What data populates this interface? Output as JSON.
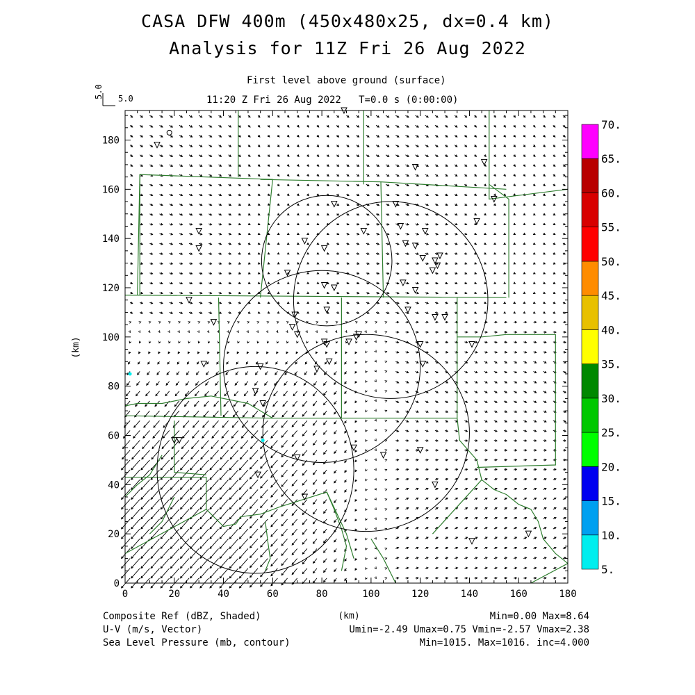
{
  "title": {
    "line1": "CASA DFW 400m (450x480x25, dx=0.4 km)",
    "line2": "Analysis for 11Z Fri 26 Aug 2022"
  },
  "subtitle": {
    "level": "First level above ground (surface)",
    "time": "11:20 Z Fri 26 Aug 2022   T=0.0 s (0:00:00)"
  },
  "vector_ref": {
    "vertical_label": "5.0",
    "horizontal_label": "5.0"
  },
  "footer": {
    "left1": "Composite Ref (dBZ, Shaded)",
    "left2": "U-V (m/s, Vector)",
    "left3": "Sea Level Pressure (mb, contour)",
    "xunit": "(km)",
    "right1": "Min=0.00 Max=8.64",
    "right2": "Umin=-2.49 Umax=0.75 Vmin=-2.57 Vmax=2.38",
    "right3": "Min=1015. Max=1016. inc=4.000"
  },
  "colors": {
    "county_lines": "#2e7d2e",
    "vectors": "#000000",
    "colorbar": [
      "#00eeee",
      "#00a0f0",
      "#0000f0",
      "#00ff00",
      "#00c800",
      "#008800",
      "#ffff00",
      "#e8c000",
      "#ff8c00",
      "#ff0000",
      "#d80000",
      "#b80000",
      "#ff00ff"
    ]
  },
  "chart_data": {
    "type": "map",
    "xlabel": "(km)",
    "ylabel": "(km)",
    "xlim": [
      0,
      180
    ],
    "ylim": [
      0,
      192
    ],
    "x_ticks": [
      0,
      20,
      40,
      60,
      80,
      100,
      120,
      140,
      160,
      180
    ],
    "y_ticks": [
      0,
      20,
      40,
      60,
      80,
      100,
      120,
      140,
      160,
      180
    ],
    "colorbar": {
      "label": "Composite Ref (dBZ, Shaded)",
      "levels": [
        "5.",
        "10.",
        "15.",
        "20.",
        "25.",
        "30.",
        "35.",
        "40.",
        "45.",
        "50.",
        "55.",
        "60.",
        "65.",
        "70."
      ]
    },
    "reflectivity": {
      "min": 0.0,
      "max": 8.64
    },
    "wind": {
      "umin": -2.49,
      "umax": 0.75,
      "vmin": -2.57,
      "vmax": 2.38
    },
    "pressure": {
      "min": 1015.0,
      "max": 1016.0,
      "inc": 4.0
    },
    "radar_rings": [
      {
        "cx": 82,
        "cy": 131,
        "rx": 26.5,
        "ry": 26.5
      },
      {
        "cx": 108,
        "cy": 115,
        "rx": 39.5,
        "ry": 40
      },
      {
        "cx": 80,
        "cy": 88,
        "rx": 40,
        "ry": 39
      },
      {
        "cx": 98,
        "cy": 61,
        "rx": 42,
        "ry": 40
      },
      {
        "cx": 53,
        "cy": 46,
        "rx": 40,
        "ry": 42
      }
    ],
    "stations": [
      [
        89,
        192
      ],
      [
        13,
        178
      ],
      [
        30,
        143
      ],
      [
        30,
        136
      ],
      [
        85,
        154
      ],
      [
        110,
        154
      ],
      [
        146,
        171
      ],
      [
        150,
        156
      ],
      [
        118,
        169
      ],
      [
        143,
        147
      ],
      [
        97,
        143
      ],
      [
        112,
        145
      ],
      [
        114,
        138
      ],
      [
        118,
        137
      ],
      [
        122,
        143
      ],
      [
        121,
        132
      ],
      [
        126,
        131
      ],
      [
        128,
        133
      ],
      [
        127,
        129
      ],
      [
        125,
        127
      ],
      [
        73,
        139
      ],
      [
        81,
        136
      ],
      [
        66,
        126
      ],
      [
        81,
        121
      ],
      [
        85,
        120
      ],
      [
        113,
        122
      ],
      [
        118,
        119
      ],
      [
        26,
        115
      ],
      [
        36,
        106
      ],
      [
        82,
        111
      ],
      [
        69,
        109
      ],
      [
        115,
        111
      ],
      [
        126,
        108
      ],
      [
        130,
        108
      ],
      [
        68,
        104
      ],
      [
        70,
        101
      ],
      [
        81,
        98
      ],
      [
        82,
        97
      ],
      [
        91,
        98
      ],
      [
        95,
        101
      ],
      [
        94,
        100
      ],
      [
        120,
        97
      ],
      [
        141,
        97
      ],
      [
        32,
        89
      ],
      [
        55,
        88
      ],
      [
        83,
        90
      ],
      [
        78,
        87
      ],
      [
        121,
        89
      ],
      [
        53,
        78
      ],
      [
        56,
        73
      ],
      [
        22,
        58
      ],
      [
        20,
        58
      ],
      [
        93,
        55
      ],
      [
        105,
        52
      ],
      [
        120,
        54
      ],
      [
        70,
        51
      ],
      [
        54,
        44
      ],
      [
        126,
        40
      ],
      [
        73,
        35
      ],
      [
        164,
        20
      ],
      [
        141,
        17
      ]
    ],
    "vector_grid_step_km": 4
  }
}
